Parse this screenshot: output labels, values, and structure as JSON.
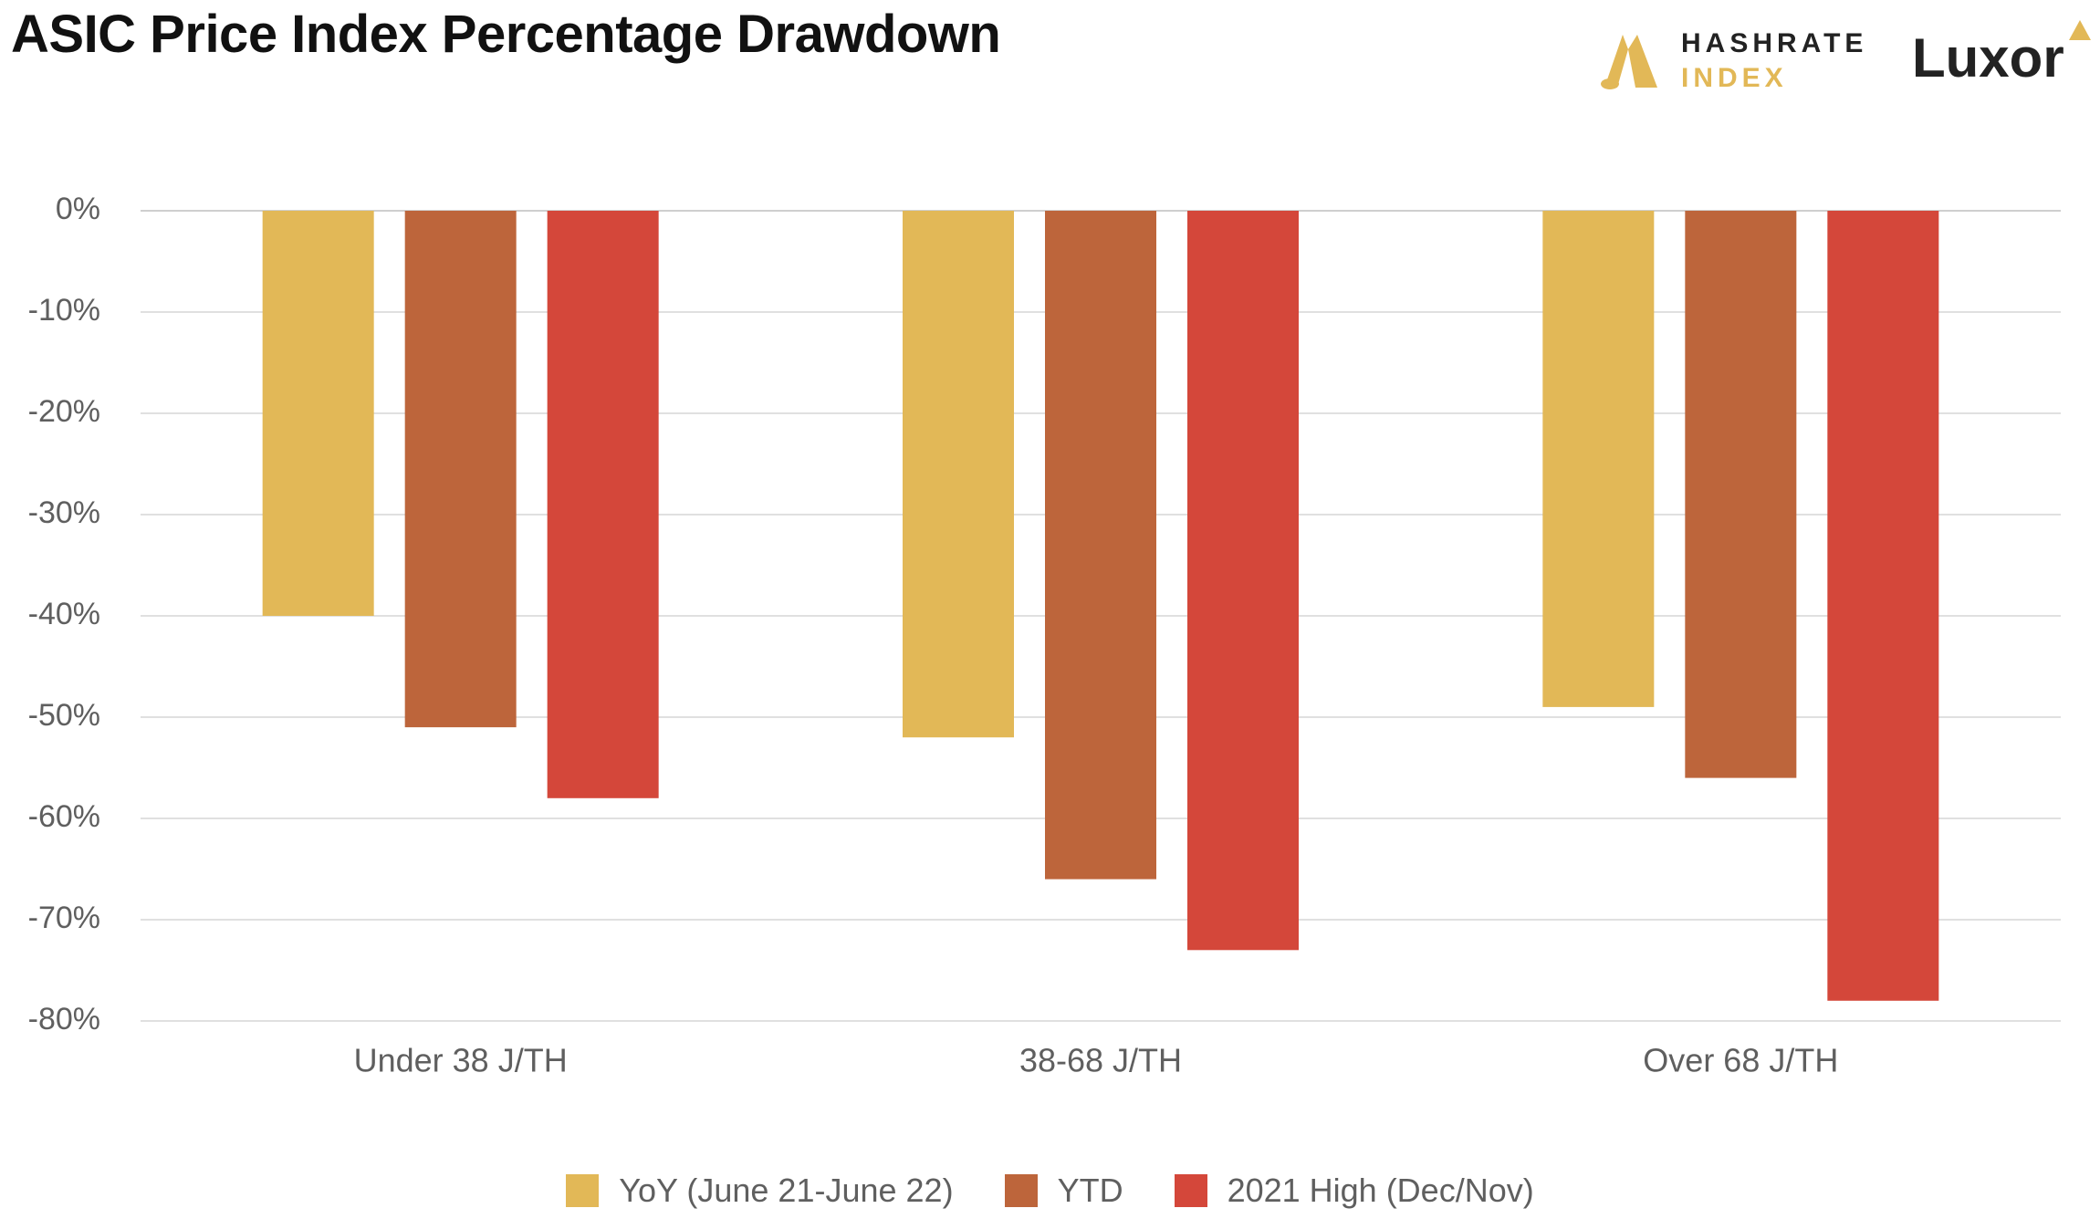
{
  "chart_data": {
    "type": "bar",
    "title": "ASIC Price Index Percentage Drawdown",
    "categories": [
      "Under 38 J/TH",
      "38-68 J/TH",
      "Over 68 J/TH"
    ],
    "series": [
      {
        "name": "YoY (June 21-June 22)",
        "color": "#e2b857",
        "values": [
          -40,
          -52,
          -49
        ]
      },
      {
        "name": "YTD",
        "color": "#bd653b",
        "values": [
          -51,
          -66,
          -56
        ]
      },
      {
        "name": "2021 High (Dec/Nov)",
        "color": "#d4473a",
        "values": [
          -58,
          -73,
          -78
        ]
      }
    ],
    "ylim": [
      -80,
      0
    ],
    "yticks": [
      0,
      -10,
      -20,
      -30,
      -40,
      -50,
      -60,
      -70,
      -80
    ],
    "ytick_labels": [
      "0%",
      "-10%",
      "-20%",
      "-30%",
      "-40%",
      "-50%",
      "-60%",
      "-70%",
      "-80%"
    ],
    "xlabel": "",
    "ylabel": "",
    "grid": true,
    "legend": "bottom-center"
  },
  "branding": {
    "hashrate_line1": "HASHRATE",
    "hashrate_line2": "INDEX",
    "hashrate_color": "#e2b857",
    "luxor": "Luxor",
    "luxor_accent": "#e2b857"
  }
}
